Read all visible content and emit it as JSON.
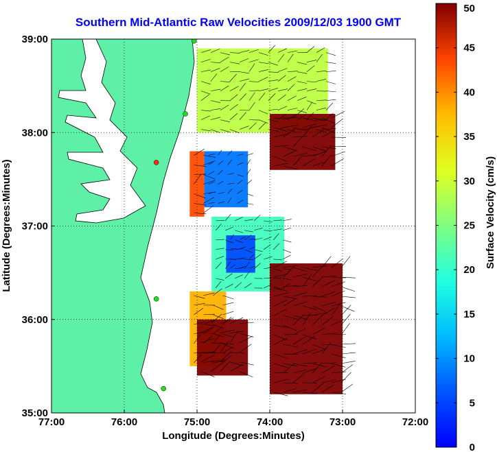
{
  "chart_data": {
    "type": "heatmap",
    "title": "Southern Mid-Atlantic Raw Velocities 2009/12/03 1900 GMT",
    "xlabel": "Longitude (Degrees:Minutes)",
    "ylabel": "Latitude (Degrees:Minutes)",
    "colorbar_label": "Surface Velocity (cm/s)",
    "xlim": [
      -77,
      -72
    ],
    "ylim": [
      35,
      39
    ],
    "xticks": [
      {
        "value": -77,
        "label": "77:00"
      },
      {
        "value": -76,
        "label": "76:00"
      },
      {
        "value": -75,
        "label": "75:00"
      },
      {
        "value": -74,
        "label": "74:00"
      },
      {
        "value": -73,
        "label": "73:00"
      },
      {
        "value": -72,
        "label": "72:00"
      }
    ],
    "yticks": [
      {
        "value": 35,
        "label": "35:00"
      },
      {
        "value": 36,
        "label": "36:00"
      },
      {
        "value": 37,
        "label": "37:00"
      },
      {
        "value": 38,
        "label": "38:00"
      },
      {
        "value": 39,
        "label": "39:00"
      }
    ],
    "colorbar": {
      "range": [
        0,
        50
      ],
      "ticks": [
        {
          "value": 0,
          "label": "0"
        },
        {
          "value": 5,
          "label": "5"
        },
        {
          "value": 10,
          "label": "10"
        },
        {
          "value": 15,
          "label": "15"
        },
        {
          "value": 20,
          "label": "20"
        },
        {
          "value": 25,
          "label": "25"
        },
        {
          "value": 30,
          "label": "30"
        },
        {
          "value": 35,
          "label": "35"
        },
        {
          "value": 40,
          "label": "40"
        },
        {
          "value": 45,
          "label": "45"
        },
        {
          "value": 50,
          "label": "50"
        }
      ]
    },
    "grid": "dotted",
    "land_color": "#5ff0a8",
    "velocity_regions": [
      {
        "lon": [
          -75.0,
          -73.2
        ],
        "lat": [
          38.0,
          38.9
        ],
        "velocity": 28
      },
      {
        "lon": [
          -74.0,
          -73.1
        ],
        "lat": [
          37.6,
          38.2
        ],
        "velocity": 50
      },
      {
        "lon": [
          -74.9,
          -74.3
        ],
        "lat": [
          37.2,
          37.8
        ],
        "velocity": 12
      },
      {
        "lon": [
          -75.1,
          -74.9
        ],
        "lat": [
          37.1,
          37.8
        ],
        "velocity": 40
      },
      {
        "lon": [
          -74.8,
          -73.8
        ],
        "lat": [
          36.3,
          37.1
        ],
        "velocity": 22
      },
      {
        "lon": [
          -74.6,
          -74.2
        ],
        "lat": [
          36.5,
          36.9
        ],
        "velocity": 10
      },
      {
        "lon": [
          -74.0,
          -73.0
        ],
        "lat": [
          35.2,
          36.6
        ],
        "velocity": 50
      },
      {
        "lon": [
          -75.1,
          -74.6
        ],
        "lat": [
          35.5,
          36.3
        ],
        "velocity": 35
      },
      {
        "lon": [
          -75.0,
          -74.3
        ],
        "lat": [
          35.4,
          36.0
        ],
        "velocity": 50
      }
    ],
    "hf_sites": [
      {
        "lon": -75.04,
        "lat": 38.98,
        "status": "ok"
      },
      {
        "lon": -75.16,
        "lat": 38.2,
        "status": "ok"
      },
      {
        "lon": -75.56,
        "lat": 37.68,
        "status": "down"
      },
      {
        "lon": -75.56,
        "lat": 36.22,
        "status": "ok"
      },
      {
        "lon": -75.46,
        "lat": 35.26,
        "status": "ok"
      }
    ]
  },
  "colors": {
    "title": "#0000ff",
    "land": "#5ff0a8",
    "site_ok": "#22dd22",
    "site_down": "#ff2a1a"
  }
}
